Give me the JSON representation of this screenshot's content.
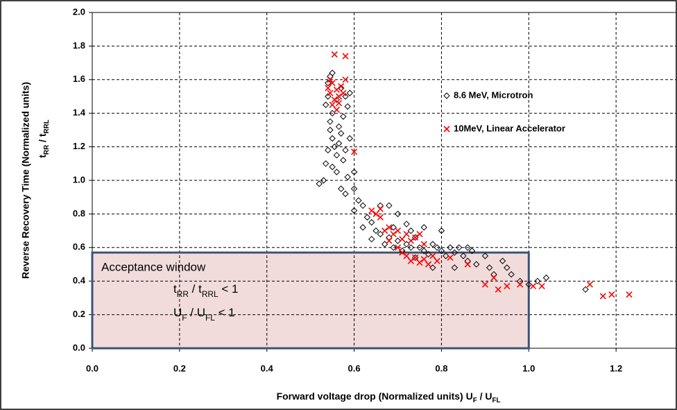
{
  "chart_data": {
    "type": "scatter",
    "x_label": [
      {
        "t": "Forward voltage drop (Normalized units) U"
      },
      {
        "sub": "F"
      },
      {
        "t": " / U"
      },
      {
        "sub": "FL"
      }
    ],
    "y_label": "Reverse Recovery Time (Normalized units)",
    "y_label_2": [
      {
        "t": "t"
      },
      {
        "sub": "RR"
      },
      {
        "t": " / t"
      },
      {
        "sub": "RRL"
      }
    ],
    "xlim": [
      0,
      1.338
    ],
    "ylim": [
      0,
      2.0
    ],
    "xticks": [
      {
        "value": 0,
        "label": "0.0"
      },
      0.2,
      0.4,
      0.6,
      0.8,
      {
        "value": 1,
        "label": "1.0"
      },
      1.2
    ],
    "yticks": [
      {
        "value": 0,
        "label": "0.0"
      },
      0.2,
      0.4,
      0.6,
      0.8,
      {
        "value": 1,
        "label": "1.0"
      },
      1.2,
      1.4,
      1.6,
      1.8,
      {
        "value": 2,
        "label": "2.0"
      }
    ],
    "grid": true,
    "legend": "upper right",
    "series": [
      {
        "name": "8.6 MeV, Microtron",
        "color": "#000000",
        "marker": "diamond",
        "x": [
          0.54,
          0.545,
          0.55,
          0.54,
          0.535,
          0.55,
          0.56,
          0.57,
          0.58,
          0.585,
          0.59,
          0.575,
          0.545,
          0.55,
          0.555,
          0.56,
          0.565,
          0.57,
          0.54,
          0.535,
          0.55,
          0.56,
          0.575,
          0.58,
          0.585,
          0.545,
          0.565,
          0.59,
          0.53,
          0.52,
          0.57,
          0.58,
          0.6,
          0.6,
          0.61,
          0.62,
          0.6,
          0.63,
          0.64,
          0.62,
          0.65,
          0.66,
          0.64,
          0.67,
          0.68,
          0.69,
          0.7,
          0.71,
          0.72,
          0.73,
          0.74,
          0.75,
          0.76,
          0.77,
          0.78,
          0.79,
          0.8,
          0.81,
          0.82,
          0.83,
          0.84,
          0.85,
          0.86,
          0.87,
          0.88,
          0.9,
          0.91,
          0.92,
          0.94,
          0.95,
          0.96,
          0.98,
          1.0,
          1.02,
          1.04,
          1.13,
          0.66,
          0.7,
          0.72,
          0.76,
          0.8,
          0.68,
          0.74,
          0.78,
          0.83,
          0.86,
          0.69,
          0.73
        ],
        "values": [
          1.58,
          1.62,
          1.64,
          1.5,
          1.45,
          1.4,
          1.48,
          1.55,
          1.5,
          1.44,
          1.52,
          1.38,
          1.3,
          1.25,
          1.2,
          1.15,
          1.22,
          1.28,
          1.18,
          1.1,
          1.08,
          1.05,
          1.12,
          1.18,
          1.02,
          1.35,
          1.32,
          1.25,
          1.0,
          0.98,
          0.95,
          0.92,
          1.05,
          0.95,
          0.88,
          0.85,
          0.82,
          0.78,
          0.75,
          0.72,
          0.7,
          0.68,
          0.65,
          0.62,
          0.66,
          0.6,
          0.64,
          0.58,
          0.62,
          0.6,
          0.66,
          0.6,
          0.58,
          0.56,
          0.62,
          0.6,
          0.58,
          0.55,
          0.6,
          0.57,
          0.6,
          0.55,
          0.52,
          0.58,
          0.5,
          0.55,
          0.48,
          0.44,
          0.52,
          0.48,
          0.44,
          0.4,
          0.38,
          0.4,
          0.42,
          0.35,
          0.85,
          0.8,
          0.74,
          0.72,
          0.7,
          0.85,
          0.54,
          0.48,
          0.48,
          0.6,
          0.72,
          0.7
        ]
      },
      {
        "name": "10MeV, Linear Accelerator",
        "color": "#ff0000",
        "marker": "x",
        "x": [
          0.555,
          0.58,
          0.58,
          0.6,
          0.54,
          0.545,
          0.55,
          0.555,
          0.56,
          0.565,
          0.57,
          0.55,
          0.56,
          0.575,
          0.545,
          0.565,
          0.64,
          0.65,
          0.66,
          0.66,
          0.67,
          0.68,
          0.69,
          0.7,
          0.71,
          0.72,
          0.73,
          0.74,
          0.75,
          0.76,
          0.7,
          0.68,
          0.72,
          0.73,
          0.74,
          0.75,
          0.76,
          0.77,
          0.78,
          0.71,
          0.79,
          0.82,
          0.86,
          0.9,
          0.92,
          0.93,
          0.95,
          0.98,
          1.01,
          1.03,
          1.14,
          1.17,
          1.19,
          1.23
        ],
        "values": [
          1.75,
          1.74,
          1.6,
          1.17,
          1.55,
          1.52,
          1.58,
          1.48,
          1.54,
          1.5,
          1.56,
          1.45,
          1.42,
          1.52,
          1.6,
          1.46,
          0.82,
          0.8,
          0.83,
          0.78,
          0.7,
          0.72,
          0.68,
          0.7,
          0.65,
          0.68,
          0.64,
          0.66,
          0.68,
          0.62,
          0.6,
          0.64,
          0.55,
          0.52,
          0.54,
          0.51,
          0.53,
          0.5,
          0.55,
          0.57,
          0.52,
          0.54,
          0.5,
          0.38,
          0.42,
          0.35,
          0.37,
          0.38,
          0.37,
          0.37,
          0.38,
          0.31,
          0.32,
          0.32
        ]
      }
    ],
    "window": {
      "xlim": [
        0,
        1.0
      ],
      "ylim": [
        0,
        0.57
      ],
      "title": "Acceptance window",
      "lines": [
        [
          {
            "t": "t"
          },
          {
            "sub": "RR"
          },
          {
            "t": " / t"
          },
          {
            "sub": "RRL"
          },
          {
            "t": "  < 1"
          }
        ],
        [
          {
            "t": "U"
          },
          {
            "sub": "F"
          },
          {
            "t": " / U"
          },
          {
            "sub": "FL"
          },
          {
            "t": "  < 1"
          }
        ]
      ]
    }
  }
}
